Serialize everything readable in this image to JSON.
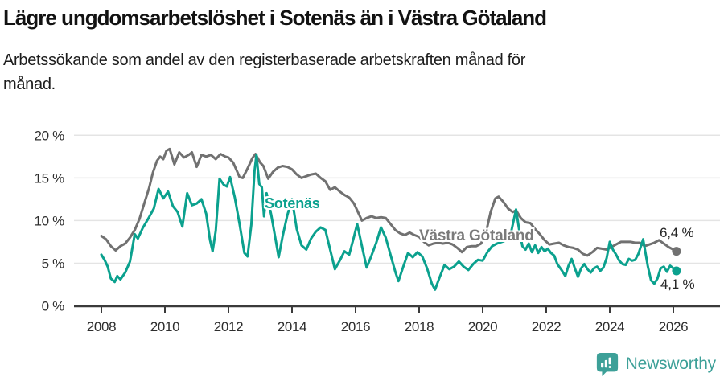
{
  "header": {
    "title": "Lägre ungdomsarbetslöshet i Sotenäs än i Västra Götaland",
    "subtitle": "Arbetssökande som andel av den registerbaserade arbetskraften månad för\nmånad."
  },
  "footer": {
    "brand": "Newsworthy",
    "brand_color": "#3da098",
    "logo_icon": "bar-chart-exclamation-badge"
  },
  "chart_data": {
    "type": "line",
    "title": "Lägre ungdomsarbetslöshet i Sotenäs än i Västra Götaland",
    "xlabel": "",
    "ylabel": "",
    "grid": true,
    "legend_position": "inline-labels",
    "x_axis": {
      "ticks": [
        2008,
        2010,
        2012,
        2014,
        2016,
        2018,
        2020,
        2022,
        2024,
        2026
      ]
    },
    "y_axis": {
      "ticks": [
        {
          "value": 0,
          "label": "0 %"
        },
        {
          "value": 5,
          "label": "5 %"
        },
        {
          "value": 10,
          "label": "10 %"
        },
        {
          "value": 15,
          "label": "15 %"
        },
        {
          "value": 20,
          "label": "20 %"
        }
      ],
      "range": [
        0,
        20
      ]
    },
    "style": {
      "grid_color": "#e4e4e4",
      "axis_color": "#3a3a3a",
      "sotenas_color": "#0ba18e",
      "vastra_gotaland_color": "#717171",
      "vg_label_color": "#7a7a7a"
    },
    "series": [
      {
        "id": "sotenas",
        "name": "Sotenäs",
        "color": "#0ba18e",
        "end_label": "4,1 %",
        "end_value": 4.1,
        "points": [
          [
            2008.0,
            6.0
          ],
          [
            2008.1,
            5.4
          ],
          [
            2008.2,
            4.6
          ],
          [
            2008.3,
            3.2
          ],
          [
            2008.42,
            2.8
          ],
          [
            2008.5,
            3.5
          ],
          [
            2008.6,
            3.1
          ],
          [
            2008.75,
            3.9
          ],
          [
            2008.9,
            5.2
          ],
          [
            2009.05,
            8.4
          ],
          [
            2009.15,
            7.9
          ],
          [
            2009.3,
            9.1
          ],
          [
            2009.5,
            10.4
          ],
          [
            2009.65,
            11.4
          ],
          [
            2009.8,
            13.7
          ],
          [
            2009.95,
            12.6
          ],
          [
            2010.1,
            13.4
          ],
          [
            2010.25,
            11.7
          ],
          [
            2010.4,
            11.0
          ],
          [
            2010.55,
            9.3
          ],
          [
            2010.7,
            13.2
          ],
          [
            2010.85,
            11.8
          ],
          [
            2011.0,
            12.0
          ],
          [
            2011.15,
            12.5
          ],
          [
            2011.3,
            10.8
          ],
          [
            2011.42,
            7.7
          ],
          [
            2011.5,
            6.4
          ],
          [
            2011.6,
            8.8
          ],
          [
            2011.72,
            14.9
          ],
          [
            2011.85,
            14.2
          ],
          [
            2011.95,
            14.0
          ],
          [
            2012.05,
            15.1
          ],
          [
            2012.2,
            12.7
          ],
          [
            2012.35,
            9.6
          ],
          [
            2012.5,
            6.2
          ],
          [
            2012.6,
            5.8
          ],
          [
            2012.72,
            9.5
          ],
          [
            2012.82,
            15.8
          ],
          [
            2012.88,
            17.7
          ],
          [
            2012.97,
            14.3
          ],
          [
            2013.05,
            13.9
          ],
          [
            2013.12,
            10.5
          ],
          [
            2013.2,
            13.2
          ],
          [
            2013.35,
            10.6
          ],
          [
            2013.5,
            7.4
          ],
          [
            2013.58,
            5.7
          ],
          [
            2013.7,
            8.1
          ],
          [
            2013.85,
            10.6
          ],
          [
            2014.0,
            12.5
          ],
          [
            2014.15,
            9.0
          ],
          [
            2014.3,
            7.1
          ],
          [
            2014.45,
            6.6
          ],
          [
            2014.6,
            7.9
          ],
          [
            2014.75,
            8.7
          ],
          [
            2014.9,
            9.2
          ],
          [
            2015.05,
            8.9
          ],
          [
            2015.2,
            6.6
          ],
          [
            2015.35,
            4.3
          ],
          [
            2015.5,
            5.3
          ],
          [
            2015.65,
            6.4
          ],
          [
            2015.8,
            6.0
          ],
          [
            2015.95,
            8.1
          ],
          [
            2016.05,
            9.6
          ],
          [
            2016.2,
            7.0
          ],
          [
            2016.35,
            4.5
          ],
          [
            2016.5,
            5.9
          ],
          [
            2016.65,
            7.4
          ],
          [
            2016.8,
            9.2
          ],
          [
            2016.95,
            8.0
          ],
          [
            2017.1,
            6.0
          ],
          [
            2017.25,
            4.0
          ],
          [
            2017.35,
            2.9
          ],
          [
            2017.5,
            4.6
          ],
          [
            2017.65,
            6.2
          ],
          [
            2017.8,
            5.7
          ],
          [
            2017.95,
            6.3
          ],
          [
            2018.1,
            5.8
          ],
          [
            2018.25,
            4.4
          ],
          [
            2018.4,
            2.6
          ],
          [
            2018.5,
            1.9
          ],
          [
            2018.65,
            3.4
          ],
          [
            2018.8,
            4.8
          ],
          [
            2018.95,
            4.3
          ],
          [
            2019.1,
            4.6
          ],
          [
            2019.25,
            5.2
          ],
          [
            2019.4,
            4.6
          ],
          [
            2019.55,
            4.2
          ],
          [
            2019.7,
            4.9
          ],
          [
            2019.85,
            5.4
          ],
          [
            2020.0,
            5.3
          ],
          [
            2020.15,
            6.3
          ],
          [
            2020.3,
            7.0
          ],
          [
            2020.45,
            7.3
          ],
          [
            2020.6,
            7.5
          ],
          [
            2020.75,
            7.7
          ],
          [
            2020.88,
            8.4
          ],
          [
            2021.05,
            11.3
          ],
          [
            2021.15,
            8.9
          ],
          [
            2021.25,
            7.0
          ],
          [
            2021.35,
            6.6
          ],
          [
            2021.45,
            7.3
          ],
          [
            2021.55,
            6.3
          ],
          [
            2021.65,
            7.1
          ],
          [
            2021.75,
            6.2
          ],
          [
            2021.85,
            6.9
          ],
          [
            2021.95,
            6.4
          ],
          [
            2022.05,
            6.7
          ],
          [
            2022.15,
            6.2
          ],
          [
            2022.25,
            5.9
          ],
          [
            2022.35,
            4.9
          ],
          [
            2022.5,
            4.1
          ],
          [
            2022.6,
            3.5
          ],
          [
            2022.7,
            4.7
          ],
          [
            2022.8,
            5.5
          ],
          [
            2022.9,
            4.4
          ],
          [
            2023.0,
            3.4
          ],
          [
            2023.1,
            4.4
          ],
          [
            2023.2,
            4.9
          ],
          [
            2023.3,
            4.3
          ],
          [
            2023.4,
            3.9
          ],
          [
            2023.5,
            4.4
          ],
          [
            2023.6,
            4.6
          ],
          [
            2023.7,
            4.1
          ],
          [
            2023.8,
            4.5
          ],
          [
            2023.9,
            5.6
          ],
          [
            2024.0,
            7.5
          ],
          [
            2024.1,
            6.6
          ],
          [
            2024.2,
            6.0
          ],
          [
            2024.3,
            5.3
          ],
          [
            2024.4,
            4.9
          ],
          [
            2024.5,
            4.8
          ],
          [
            2024.6,
            5.5
          ],
          [
            2024.7,
            5.3
          ],
          [
            2024.8,
            5.4
          ],
          [
            2024.9,
            6.1
          ],
          [
            2025.05,
            7.8
          ],
          [
            2025.2,
            4.6
          ],
          [
            2025.3,
            3.0
          ],
          [
            2025.4,
            2.6
          ],
          [
            2025.5,
            3.2
          ],
          [
            2025.6,
            4.4
          ],
          [
            2025.7,
            4.6
          ],
          [
            2025.8,
            4.0
          ],
          [
            2025.9,
            4.7
          ],
          [
            2026.0,
            4.4
          ],
          [
            2026.1,
            4.1
          ]
        ]
      },
      {
        "id": "vastra-gotaland",
        "name": "Västra Götaland",
        "color": "#717171",
        "end_label": "6,4 %",
        "end_value": 6.4,
        "points": [
          [
            2008.0,
            8.2
          ],
          [
            2008.15,
            7.8
          ],
          [
            2008.3,
            7.0
          ],
          [
            2008.45,
            6.5
          ],
          [
            2008.6,
            7.0
          ],
          [
            2008.75,
            7.3
          ],
          [
            2008.9,
            8.0
          ],
          [
            2009.05,
            8.9
          ],
          [
            2009.2,
            10.2
          ],
          [
            2009.35,
            12.0
          ],
          [
            2009.5,
            13.8
          ],
          [
            2009.62,
            15.6
          ],
          [
            2009.75,
            17.0
          ],
          [
            2009.85,
            17.5
          ],
          [
            2009.95,
            17.2
          ],
          [
            2010.05,
            18.2
          ],
          [
            2010.15,
            18.4
          ],
          [
            2010.3,
            16.6
          ],
          [
            2010.45,
            18.0
          ],
          [
            2010.6,
            17.4
          ],
          [
            2010.75,
            17.7
          ],
          [
            2010.85,
            18.0
          ],
          [
            2011.0,
            16.3
          ],
          [
            2011.15,
            17.7
          ],
          [
            2011.3,
            17.5
          ],
          [
            2011.45,
            17.7
          ],
          [
            2011.6,
            17.2
          ],
          [
            2011.75,
            17.8
          ],
          [
            2011.9,
            17.5
          ],
          [
            2012.0,
            17.4
          ],
          [
            2012.15,
            16.8
          ],
          [
            2012.35,
            15.1
          ],
          [
            2012.45,
            15.0
          ],
          [
            2012.6,
            16.1
          ],
          [
            2012.75,
            17.3
          ],
          [
            2012.85,
            17.8
          ],
          [
            2013.0,
            16.8
          ],
          [
            2013.1,
            16.4
          ],
          [
            2013.25,
            14.9
          ],
          [
            2013.4,
            15.7
          ],
          [
            2013.55,
            16.2
          ],
          [
            2013.7,
            16.4
          ],
          [
            2013.85,
            16.3
          ],
          [
            2014.0,
            16.0
          ],
          [
            2014.15,
            15.4
          ],
          [
            2014.3,
            15.0
          ],
          [
            2014.45,
            15.2
          ],
          [
            2014.6,
            15.4
          ],
          [
            2014.75,
            15.5
          ],
          [
            2014.9,
            15.0
          ],
          [
            2015.05,
            14.6
          ],
          [
            2015.2,
            13.6
          ],
          [
            2015.35,
            13.9
          ],
          [
            2015.5,
            13.4
          ],
          [
            2015.65,
            13.0
          ],
          [
            2015.8,
            12.7
          ],
          [
            2015.95,
            12.0
          ],
          [
            2016.05,
            11.2
          ],
          [
            2016.2,
            10.0
          ],
          [
            2016.35,
            10.3
          ],
          [
            2016.5,
            10.5
          ],
          [
            2016.65,
            10.3
          ],
          [
            2016.8,
            10.4
          ],
          [
            2016.95,
            10.3
          ],
          [
            2017.1,
            9.6
          ],
          [
            2017.25,
            8.9
          ],
          [
            2017.4,
            8.5
          ],
          [
            2017.55,
            8.3
          ],
          [
            2017.7,
            8.6
          ],
          [
            2017.85,
            8.3
          ],
          [
            2018.0,
            8.1
          ],
          [
            2018.15,
            7.5
          ],
          [
            2018.3,
            7.1
          ],
          [
            2018.45,
            7.3
          ],
          [
            2018.6,
            7.4
          ],
          [
            2018.75,
            7.3
          ],
          [
            2018.9,
            7.4
          ],
          [
            2019.05,
            7.2
          ],
          [
            2019.2,
            6.8
          ],
          [
            2019.35,
            6.3
          ],
          [
            2019.5,
            6.9
          ],
          [
            2019.65,
            7.0
          ],
          [
            2019.8,
            7.0
          ],
          [
            2019.95,
            7.3
          ],
          [
            2020.1,
            8.5
          ],
          [
            2020.25,
            11.0
          ],
          [
            2020.4,
            12.6
          ],
          [
            2020.5,
            12.8
          ],
          [
            2020.65,
            12.2
          ],
          [
            2020.8,
            11.4
          ],
          [
            2020.95,
            11.0
          ],
          [
            2021.05,
            11.2
          ],
          [
            2021.2,
            10.3
          ],
          [
            2021.35,
            9.8
          ],
          [
            2021.5,
            9.7
          ],
          [
            2021.65,
            9.0
          ],
          [
            2021.8,
            8.4
          ],
          [
            2021.95,
            7.7
          ],
          [
            2022.1,
            7.2
          ],
          [
            2022.25,
            7.3
          ],
          [
            2022.4,
            7.4
          ],
          [
            2022.55,
            7.1
          ],
          [
            2022.7,
            6.9
          ],
          [
            2022.85,
            6.8
          ],
          [
            2023.0,
            6.6
          ],
          [
            2023.15,
            6.1
          ],
          [
            2023.3,
            5.9
          ],
          [
            2023.45,
            6.3
          ],
          [
            2023.6,
            6.8
          ],
          [
            2023.75,
            6.7
          ],
          [
            2023.9,
            6.6
          ],
          [
            2024.05,
            6.9
          ],
          [
            2024.2,
            7.2
          ],
          [
            2024.35,
            7.5
          ],
          [
            2024.5,
            7.5
          ],
          [
            2024.65,
            7.5
          ],
          [
            2024.8,
            7.4
          ],
          [
            2024.95,
            7.4
          ],
          [
            2025.1,
            7.0
          ],
          [
            2025.25,
            7.2
          ],
          [
            2025.4,
            7.4
          ],
          [
            2025.55,
            7.7
          ],
          [
            2025.7,
            7.3
          ],
          [
            2025.85,
            6.9
          ],
          [
            2026.0,
            6.6
          ],
          [
            2026.1,
            6.4
          ]
        ]
      }
    ]
  }
}
